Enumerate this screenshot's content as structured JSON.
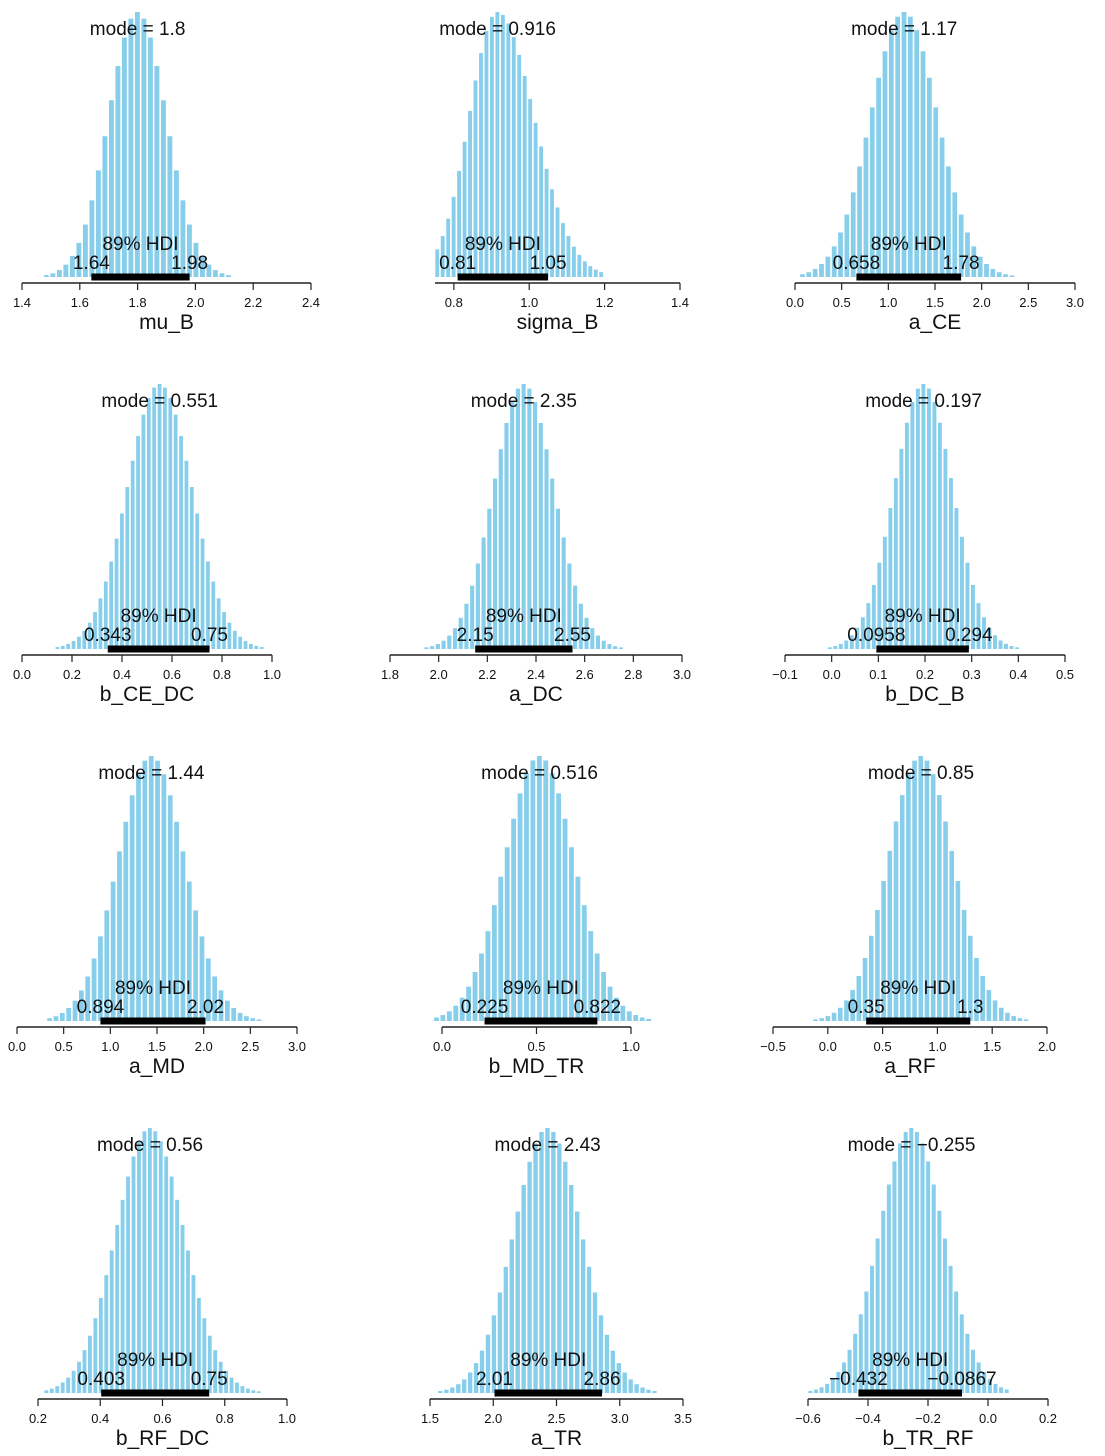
{
  "chart_data": [
    {
      "type": "bar",
      "xlabel": "mu_B",
      "mode_text": "mode = 1.8",
      "hdi_label": "89% HDI",
      "hdi_low_text": "1.64",
      "hdi_high_text": "1.98",
      "mode": 1.8,
      "sd": 0.1,
      "hdi": [
        1.64,
        1.98
      ],
      "xlim": [
        1.4,
        2.4
      ],
      "ticks": [
        1.4,
        1.6,
        1.8,
        2.0,
        2.2,
        2.4
      ],
      "tick_labels": [
        "1.4",
        "1.6",
        "1.8",
        "2.0",
        "2.2",
        "2.4"
      ],
      "bin": 0.0225,
      "hist_range": [
        1.48,
        2.15
      ],
      "grid": false,
      "legend": "none",
      "bar_color": "#87ceeb"
    },
    {
      "type": "bar",
      "xlabel": "sigma_B",
      "mode_text": "mode = 0.916",
      "hdi_label": "89% HDI",
      "hdi_low_text": "0.81",
      "hdi_high_text": "1.05",
      "mode": 0.916,
      "sd": 0.075,
      "skew": 1.3,
      "hdi": [
        0.81,
        1.05
      ],
      "xlim": [
        0.75,
        1.4
      ],
      "ticks": [
        0.8,
        1.0,
        1.2,
        1.4
      ],
      "tick_labels": [
        "0.8",
        "1.0",
        "1.2",
        "1.4"
      ],
      "bin": 0.0145,
      "hist_range": [
        0.75,
        1.2
      ],
      "grid": false,
      "legend": "none",
      "bar_color": "#87ceeb"
    },
    {
      "type": "bar",
      "xlabel": "a_CE",
      "mode_text": "mode = 1.17",
      "hdi_label": "89% HDI",
      "hdi_low_text": "0.658",
      "hdi_high_text": "1.78",
      "mode": 1.17,
      "sd": 0.36,
      "hdi": [
        0.658,
        1.78
      ],
      "xlim": [
        0.0,
        3.0
      ],
      "ticks": [
        0.0,
        0.5,
        1.0,
        1.5,
        2.0,
        2.5,
        3.0
      ],
      "tick_labels": [
        "0.0",
        "0.5",
        "1.0",
        "1.5",
        "2.0",
        "2.5",
        "3.0"
      ],
      "bin": 0.068,
      "hist_range": [
        0.05,
        2.35
      ],
      "grid": false,
      "legend": "none",
      "bar_color": "#87ceeb"
    },
    {
      "type": "bar",
      "xlabel": "b_CE_DC",
      "mode_text": "mode = 0.551",
      "hdi_label": "89% HDI",
      "hdi_low_text": "0.343",
      "hdi_high_text": "0.75",
      "mode": 0.551,
      "sd": 0.13,
      "hdi": [
        0.343,
        0.75
      ],
      "xlim": [
        0.0,
        1.0
      ],
      "ticks": [
        0.0,
        0.2,
        0.4,
        0.6,
        0.8,
        1.0
      ],
      "tick_labels": [
        "0.0",
        "0.2",
        "0.4",
        "0.6",
        "0.8",
        "1.0"
      ],
      "bin": 0.0215,
      "hist_range": [
        0.12,
        0.96
      ],
      "grid": false,
      "legend": "none",
      "bar_color": "#87ceeb"
    },
    {
      "type": "bar",
      "xlabel": "a_DC",
      "mode_text": "mode = 2.35",
      "hdi_label": "89% HDI",
      "hdi_low_text": "2.15",
      "hdi_high_text": "2.55",
      "mode": 2.35,
      "sd": 0.125,
      "hdi": [
        2.15,
        2.55
      ],
      "xlim": [
        1.8,
        3.0
      ],
      "ticks": [
        1.8,
        2.0,
        2.2,
        2.4,
        2.6,
        2.8,
        3.0
      ],
      "tick_labels": [
        "1.8",
        "2.0",
        "2.2",
        "2.4",
        "2.6",
        "2.8",
        "3.0"
      ],
      "bin": 0.0235,
      "hist_range": [
        1.95,
        2.78
      ],
      "grid": false,
      "legend": "none",
      "bar_color": "#87ceeb"
    },
    {
      "type": "bar",
      "xlabel": "b_DC_B",
      "mode_text": "mode = 0.197",
      "hdi_label": "89% HDI",
      "hdi_low_text": "0.0958",
      "hdi_high_text": "0.294",
      "mode": 0.197,
      "sd": 0.063,
      "hdi": [
        0.0958,
        0.294
      ],
      "xlim": [
        -0.1,
        0.5
      ],
      "ticks": [
        -0.1,
        0.0,
        0.1,
        0.2,
        0.3,
        0.4,
        0.5
      ],
      "tick_labels": [
        "−0.1",
        "0.0",
        "0.1",
        "0.2",
        "0.3",
        "0.4",
        "0.5"
      ],
      "bin": 0.0118,
      "hist_range": [
        -0.01,
        0.41
      ],
      "grid": false,
      "legend": "none",
      "bar_color": "#87ceeb"
    },
    {
      "type": "bar",
      "xlabel": "a_MD",
      "mode_text": "mode = 1.44",
      "hdi_label": "89% HDI",
      "hdi_low_text": "0.894",
      "hdi_high_text": "2.02",
      "mode": 1.44,
      "sd": 0.36,
      "hdi": [
        0.894,
        2.02
      ],
      "xlim": [
        0.0,
        3.0
      ],
      "ticks": [
        0.0,
        0.5,
        1.0,
        1.5,
        2.0,
        2.5,
        3.0
      ],
      "tick_labels": [
        "0.0",
        "0.5",
        "1.0",
        "1.5",
        "2.0",
        "2.5",
        "3.0"
      ],
      "bin": 0.068,
      "hist_range": [
        0.32,
        2.6
      ],
      "grid": false,
      "legend": "none",
      "bar_color": "#87ceeb"
    },
    {
      "type": "bar",
      "xlabel": "b_MD_TR",
      "mode_text": "mode = 0.516",
      "hdi_label": "89% HDI",
      "hdi_low_text": "0.225",
      "hdi_high_text": "0.822",
      "mode": 0.516,
      "sd": 0.185,
      "hdi": [
        0.225,
        0.822
      ],
      "xlim": [
        0.0,
        1.0
      ],
      "ticks": [
        0.0,
        0.5,
        1.0
      ],
      "tick_labels": [
        "0.0",
        "0.5",
        "1.0"
      ],
      "bin": 0.034,
      "hist_range": [
        -0.04,
        1.1
      ],
      "grid": false,
      "legend": "none",
      "bar_color": "#87ceeb"
    },
    {
      "type": "bar",
      "xlabel": "a_RF",
      "mode_text": "mode = 0.85",
      "hdi_label": "89% HDI",
      "hdi_low_text": "0.35",
      "hdi_high_text": "1.3",
      "mode": 0.85,
      "sd": 0.3,
      "hdi": [
        0.35,
        1.3
      ],
      "xlim": [
        -0.5,
        2.0
      ],
      "ticks": [
        -0.5,
        0.0,
        0.5,
        1.0,
        1.5,
        2.0
      ],
      "tick_labels": [
        "−0.5",
        "0.0",
        "0.5",
        "1.0",
        "1.5",
        "2.0"
      ],
      "bin": 0.0565,
      "hist_range": [
        -0.12,
        1.82
      ],
      "grid": false,
      "legend": "none",
      "bar_color": "#87ceeb"
    },
    {
      "type": "bar",
      "xlabel": "b_RF_DC",
      "mode_text": "mode = 0.56",
      "hdi_label": "89% HDI",
      "hdi_low_text": "0.403",
      "hdi_high_text": "0.75",
      "mode": 0.56,
      "sd": 0.11,
      "hdi": [
        0.403,
        0.75
      ],
      "xlim": [
        0.2,
        1.0
      ],
      "ticks": [
        0.2,
        0.4,
        0.6,
        0.8,
        1.0
      ],
      "tick_labels": [
        "0.2",
        "0.4",
        "0.6",
        "0.8",
        "1.0"
      ],
      "bin": 0.0175,
      "hist_range": [
        0.22,
        0.92
      ],
      "grid": false,
      "legend": "none",
      "bar_color": "#87ceeb"
    },
    {
      "type": "bar",
      "xlabel": "a_TR",
      "mode_text": "mode = 2.43",
      "hdi_label": "89% HDI",
      "hdi_low_text": "2.01",
      "hdi_high_text": "2.86",
      "mode": 2.43,
      "sd": 0.27,
      "hdi": [
        2.01,
        2.86
      ],
      "xlim": [
        1.5,
        3.5
      ],
      "ticks": [
        1.5,
        2.0,
        2.5,
        3.0,
        3.5
      ],
      "tick_labels": [
        "1.5",
        "2.0",
        "2.5",
        "3.0",
        "3.5"
      ],
      "bin": 0.047,
      "hist_range": [
        1.56,
        3.3
      ],
      "grid": false,
      "legend": "none",
      "bar_color": "#87ceeb"
    },
    {
      "type": "bar",
      "xlabel": "b_TR_RF",
      "mode_text": "mode = −0.255",
      "hdi_label": "89% HDI",
      "hdi_low_text": "−0.432",
      "hdi_high_text": "−0.0867",
      "mode": -0.255,
      "sd": 0.108,
      "hdi": [
        -0.432,
        -0.0867
      ],
      "xlim": [
        -0.6,
        0.2
      ],
      "ticks": [
        -0.6,
        -0.4,
        -0.2,
        0.0,
        0.2
      ],
      "tick_labels": [
        "−0.6",
        "−0.4",
        "−0.2",
        "0.0",
        "0.2"
      ],
      "bin": 0.0187,
      "hist_range": [
        -0.6,
        0.08
      ],
      "grid": false,
      "legend": "none",
      "bar_color": "#87ceeb"
    }
  ]
}
